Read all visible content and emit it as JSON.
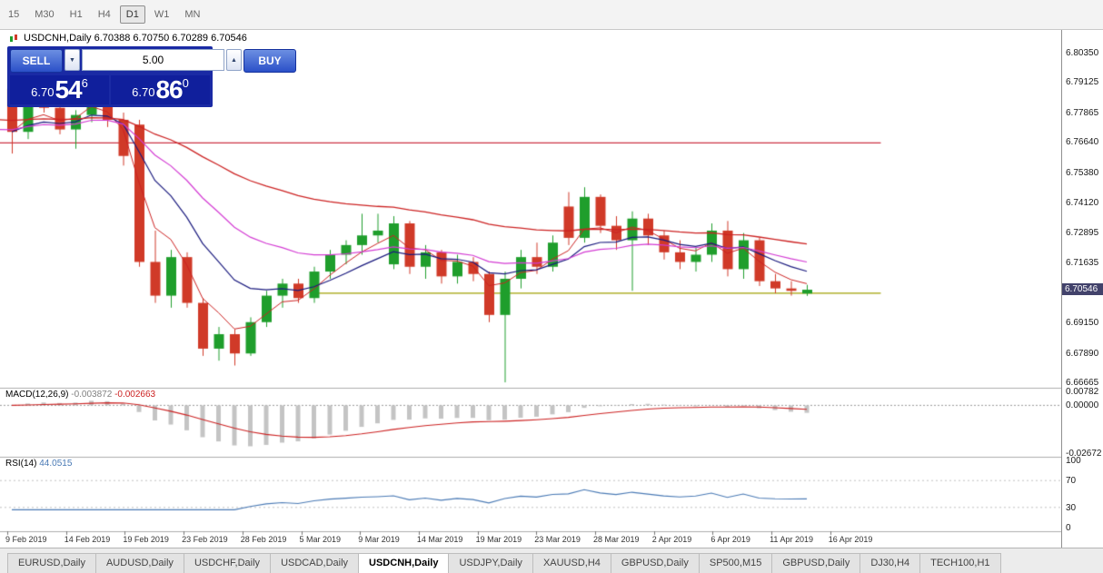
{
  "toolbar": {
    "timeframes": [
      {
        "label": "15",
        "active": false
      },
      {
        "label": "M30",
        "active": false
      },
      {
        "label": "H1",
        "active": false
      },
      {
        "label": "H4",
        "active": false
      },
      {
        "label": "D1",
        "active": true
      },
      {
        "label": "W1",
        "active": false
      },
      {
        "label": "MN",
        "active": false
      }
    ]
  },
  "chart_header": {
    "title": "USDCNH,Daily 6.70388 6.70750 6.70289 6.70546"
  },
  "trade_panel": {
    "sell_label": "SELL",
    "buy_label": "BUY",
    "volume": "5.00",
    "sell_price": {
      "prefix": "6.70",
      "big": "54",
      "sup": "6"
    },
    "buy_price": {
      "prefix": "6.70",
      "big": "86",
      "sup": "0"
    },
    "panel_color": "#1a2aa4",
    "button_color": "#2b50c8"
  },
  "price_axis": {
    "labels": [
      "6.80350",
      "6.79125",
      "6.77865",
      "6.76640",
      "6.75380",
      "6.74120",
      "6.72895",
      "6.71635",
      "6.69150",
      "6.67890",
      "6.66665"
    ],
    "current": "6.70546"
  },
  "macd_panel": {
    "label": "MACD(12,26,9)",
    "value_main": "-0.003872",
    "value_signal": "-0.002663",
    "axis": [
      "0.00782",
      "0.00000",
      "-0.02672"
    ]
  },
  "rsi_panel": {
    "label": "RSI(14)",
    "value": "44.0515",
    "axis": [
      "100",
      "70",
      "30",
      "0"
    ]
  },
  "date_axis": [
    "9 Feb 2019",
    "14 Feb 2019",
    "19 Feb 2019",
    "23 Feb 2019",
    "28 Feb 2019",
    "5 Mar 2019",
    "9 Mar 2019",
    "14 Mar 2019",
    "19 Mar 2019",
    "23 Mar 2019",
    "28 Mar 2019",
    "2 Apr 2019",
    "6 Apr 2019",
    "11 Apr 2019",
    "16 Apr 2019"
  ],
  "bottom_tabs": {
    "tabs": [
      {
        "label": "EURUSD,Daily",
        "active": false
      },
      {
        "label": "AUDUSD,Daily",
        "active": false
      },
      {
        "label": "USDCHF,Daily",
        "active": false
      },
      {
        "label": "USDCAD,Daily",
        "active": false
      },
      {
        "label": "USDCNH,Daily",
        "active": true
      },
      {
        "label": "USDJPY,Daily",
        "active": false
      },
      {
        "label": "XAUUSD,H4",
        "active": false
      },
      {
        "label": "GBPUSD,Daily",
        "active": false
      },
      {
        "label": "SP500,M15",
        "active": false
      },
      {
        "label": "GBPUSD,Daily",
        "active": false
      },
      {
        "label": "DJ30,H4",
        "active": false
      },
      {
        "label": "TECH100,H1",
        "active": false
      }
    ]
  },
  "chart_data": {
    "type": "candlestick",
    "symbol": "USDCNH",
    "timeframe": "Daily",
    "ohlc_display": {
      "open": "6.70388",
      "high": "6.70750",
      "low": "6.70289",
      "close": "6.70546"
    },
    "price_range": [
      6.66665,
      6.8035
    ],
    "colors": {
      "up": "#1f9e2c",
      "down": "#d03a28",
      "macd_hist": "#c4c4c4",
      "macd_signal": "#cc2222",
      "rsi_line": "#4a7ab5"
    },
    "candles": [
      [
        6.789,
        6.791,
        6.762,
        6.771
      ],
      [
        6.771,
        6.786,
        6.768,
        6.784
      ],
      [
        6.784,
        6.792,
        6.779,
        6.781
      ],
      [
        6.781,
        6.786,
        6.77,
        6.772
      ],
      [
        6.772,
        6.78,
        6.764,
        6.778
      ],
      [
        6.778,
        6.791,
        6.775,
        6.789
      ],
      [
        6.789,
        6.79,
        6.773,
        6.776
      ],
      [
        6.776,
        6.779,
        6.757,
        6.761
      ],
      [
        6.774,
        6.776,
        6.715,
        6.717
      ],
      [
        6.717,
        6.73,
        6.7,
        6.703
      ],
      [
        6.703,
        6.722,
        6.698,
        6.719
      ],
      [
        6.719,
        6.721,
        6.698,
        6.7
      ],
      [
        6.7,
        6.702,
        6.678,
        6.681
      ],
      [
        6.681,
        6.69,
        6.676,
        6.687
      ],
      [
        6.687,
        6.689,
        6.674,
        6.679
      ],
      [
        6.679,
        6.694,
        6.678,
        6.692
      ],
      [
        6.692,
        6.705,
        6.69,
        6.703
      ],
      [
        6.703,
        6.71,
        6.698,
        6.708
      ],
      [
        6.708,
        6.71,
        6.7,
        6.702
      ],
      [
        6.702,
        6.715,
        6.7,
        6.713
      ],
      [
        6.713,
        6.722,
        6.71,
        6.72
      ],
      [
        6.72,
        6.726,
        6.716,
        6.724
      ],
      [
        6.724,
        6.737,
        6.72,
        6.728
      ],
      [
        6.728,
        6.737,
        6.725,
        6.73
      ],
      [
        6.716,
        6.736,
        6.714,
        6.733
      ],
      [
        6.733,
        6.734,
        6.712,
        6.715
      ],
      [
        6.715,
        6.724,
        6.71,
        6.721
      ],
      [
        6.721,
        6.722,
        6.708,
        6.711
      ],
      [
        6.711,
        6.72,
        6.708,
        6.717
      ],
      [
        6.717,
        6.719,
        6.709,
        6.712
      ],
      [
        6.712,
        6.713,
        6.692,
        6.695
      ],
      [
        6.695,
        6.713,
        6.667,
        6.71
      ],
      [
        6.71,
        6.722,
        6.706,
        6.719
      ],
      [
        6.719,
        6.725,
        6.712,
        6.715
      ],
      [
        6.715,
        6.728,
        6.713,
        6.725
      ],
      [
        6.74,
        6.746,
        6.724,
        6.727
      ],
      [
        6.727,
        6.748,
        6.725,
        6.744
      ],
      [
        6.744,
        6.745,
        6.729,
        6.732
      ],
      [
        6.732,
        6.736,
        6.722,
        6.726
      ],
      [
        6.726,
        6.738,
        6.705,
        6.735
      ],
      [
        6.735,
        6.737,
        6.724,
        6.728
      ],
      [
        6.728,
        6.73,
        6.718,
        6.721
      ],
      [
        6.721,
        6.726,
        6.714,
        6.717
      ],
      [
        6.717,
        6.723,
        6.713,
        6.72
      ],
      [
        6.72,
        6.733,
        6.717,
        6.73
      ],
      [
        6.73,
        6.734,
        6.711,
        6.714
      ],
      [
        6.714,
        6.729,
        6.71,
        6.726
      ],
      [
        6.726,
        6.727,
        6.707,
        6.709
      ],
      [
        6.709,
        6.712,
        6.704,
        6.706
      ],
      [
        6.706,
        6.709,
        6.703,
        6.705
      ],
      [
        6.70388,
        6.7075,
        6.70289,
        6.70546
      ]
    ],
    "hlines": [
      {
        "name": "resistance-line",
        "price": 6.7664,
        "color": "#cc3344",
        "x0": 0.0,
        "x1": 0.83
      },
      {
        "name": "support-line",
        "price": 6.704,
        "color": "#a0a000",
        "x0": 0.298,
        "x1": 0.83
      }
    ],
    "moving_averages": [
      {
        "period": 4,
        "color": "#cc2222",
        "width": 1,
        "seed": null
      },
      {
        "period": 9,
        "color": "#1a1a7e",
        "width": 1.2,
        "seed": null
      },
      {
        "period": 18,
        "color": "#d33bd3",
        "width": 1.2,
        "seed": 6.772
      },
      {
        "period": 42,
        "color": "#cc2222",
        "width": 1.3,
        "seed": 6.776
      }
    ],
    "macd": {
      "fast": 12,
      "slow": 26,
      "signal": 9,
      "range": [
        -0.02672,
        0.00782
      ]
    },
    "rsi": {
      "period": 14,
      "range": [
        0,
        100
      ],
      "levels": [
        30,
        70
      ]
    }
  }
}
